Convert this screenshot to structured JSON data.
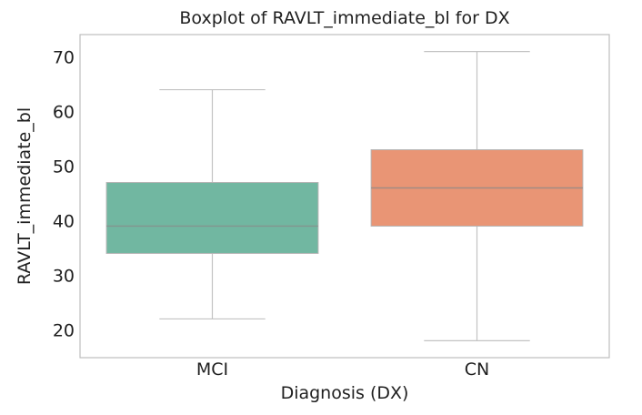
{
  "chart_data": {
    "type": "box",
    "title": "Boxplot of RAVLT_immediate_bl for DX",
    "xlabel": "Diagnosis (DX)",
    "ylabel": "RAVLT_immediate_bl",
    "categories": [
      "MCI",
      "CN"
    ],
    "yticks": [
      20,
      30,
      40,
      50,
      60,
      70
    ],
    "ylim": [
      14.9,
      74.1
    ],
    "grid": false,
    "legend": false,
    "series": [
      {
        "category": "MCI",
        "whisker_low": 22,
        "q1": 34,
        "median": 39,
        "q3": 47,
        "whisker_high": 64,
        "fill_color": "#71b7a1"
      },
      {
        "category": "CN",
        "whisker_low": 18,
        "q1": 39,
        "median": 46,
        "q3": 53,
        "whisker_high": 71,
        "fill_color": "#e99575"
      }
    ],
    "colors": {
      "whisker_line": "#c3c3c3",
      "box_edge": "#b5b5b5",
      "median_line": "#8a8a8a",
      "spine": "#bdbdbd",
      "text": "#1f1f1f",
      "background": "#ffffff"
    }
  }
}
